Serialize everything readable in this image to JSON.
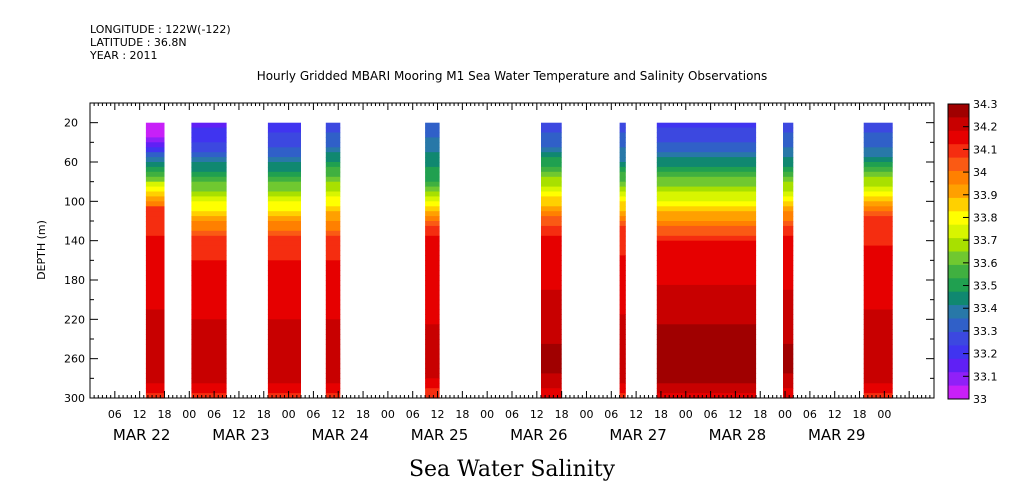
{
  "header": {
    "longitude": "LONGITUDE : 122W(-122)",
    "latitude": "LATITUDE : 36.8N",
    "year": "YEAR : 2011"
  },
  "chart_data": {
    "type": "heatmap",
    "title": "Hourly Gridded MBARI Mooring M1 Sea Water Temperature and Salinity Observations",
    "xlabel": "",
    "ylabel": "DEPTH (m)",
    "bottom_label": "Sea Water Salinity",
    "ylim": [
      300,
      0
    ],
    "yticks": [
      20,
      60,
      100,
      140,
      180,
      220,
      260,
      300
    ],
    "xlim_hours": [
      0,
      204
    ],
    "xtick_labels": [
      "06",
      "12",
      "18",
      "00",
      "06",
      "12",
      "18",
      "00",
      "06",
      "12",
      "18",
      "00",
      "06",
      "12",
      "18",
      "00",
      "06",
      "12",
      "18",
      "00",
      "06",
      "12",
      "18",
      "00",
      "06",
      "12",
      "18",
      "00",
      "06",
      "12",
      "18",
      "00"
    ],
    "dates": [
      "MAR 22",
      "MAR 23",
      "MAR 24",
      "MAR 25",
      "MAR 26",
      "MAR 27",
      "MAR 28",
      "MAR 29"
    ],
    "data_depth_range": [
      20,
      300
    ],
    "colorbar": {
      "levels": [
        "34.3",
        "34.2",
        "34.1",
        "34",
        "33.9",
        "33.8",
        "33.7",
        "33.6",
        "33.5",
        "33.4",
        "33.3",
        "33.2",
        "33.1",
        "33"
      ],
      "colors": [
        "#a00000",
        "#c80000",
        "#e60000",
        "#f52d10",
        "#fa5a14",
        "#ff8000",
        "#ffa000",
        "#ffd000",
        "#ffff00",
        "#d8f500",
        "#a8e000",
        "#70c830",
        "#40b040",
        "#20a050",
        "#108870",
        "#2878a8",
        "#3060c8",
        "#3c48e0",
        "#4034f0",
        "#6020f5",
        "#9020f8",
        "#c820f8"
      ],
      "display_values": [
        33,
        34.3
      ]
    },
    "series": [
      {
        "start": 13.5,
        "end": 18,
        "s20": 33.0,
        "mix_top": 35,
        "mix_bot": 110,
        "deep": 34.1,
        "core": 34.22
      },
      {
        "start": 24.5,
        "end": 33,
        "s20": 33.15,
        "mix_top": 40,
        "mix_bot": 140,
        "deep": 34.1,
        "core": 34.22
      },
      {
        "start": 43,
        "end": 51,
        "s20": 33.2,
        "mix_top": 50,
        "mix_bot": 140,
        "deep": 34.1,
        "core": 34.22
      },
      {
        "start": 57,
        "end": 60.5,
        "s20": 33.25,
        "mix_top": 40,
        "mix_bot": 140,
        "deep": 34.1,
        "core": 34.22
      },
      {
        "start": 81,
        "end": 84.5,
        "s20": 33.3,
        "mix_top": 80,
        "mix_bot": 130,
        "deep": 34.12,
        "core": 34.2
      },
      {
        "start": 109,
        "end": 114,
        "s20": 33.25,
        "mix_top": 40,
        "mix_bot": 130,
        "deep": 34.12,
        "core": 34.25
      },
      {
        "start": 128,
        "end": 129.5,
        "s20": 33.25,
        "mix_top": 60,
        "mix_bot": 130,
        "deep": 34.1,
        "core": 34.22
      },
      {
        "start": 137,
        "end": 161,
        "s20": 33.22,
        "mix_top": 45,
        "mix_bot": 140,
        "deep": 34.12,
        "core": 34.28
      },
      {
        "start": 167.5,
        "end": 170,
        "s20": 33.25,
        "mix_top": 55,
        "mix_bot": 130,
        "deep": 34.12,
        "core": 34.25
      },
      {
        "start": 187,
        "end": 194,
        "s20": 33.25,
        "mix_top": 50,
        "mix_bot": 120,
        "deep": 34.1,
        "core": 34.22
      }
    ]
  }
}
